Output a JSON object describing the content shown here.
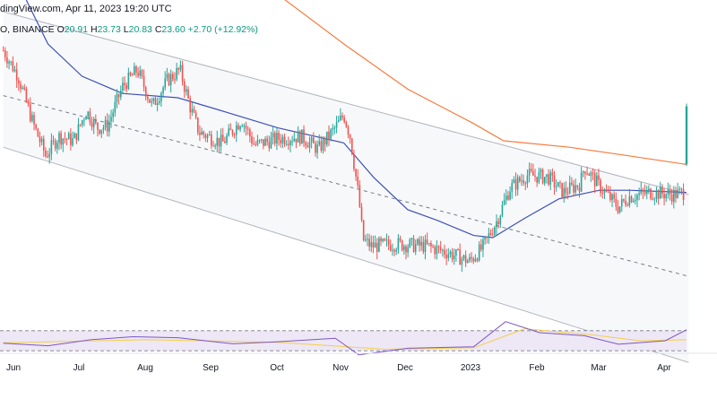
{
  "header": {
    "source_date": "dingView.com, Apr 11, 2023 19:20 UTC",
    "symbol": "O, BINANCE",
    "open_label": "O",
    "open": "20.91",
    "high_label": "H",
    "high": "23.73",
    "low_label": "L",
    "low": "20.83",
    "close_label": "C",
    "close": "23.60",
    "change": "+2.70 (+12.92%)"
  },
  "colors": {
    "up": "#26a69a",
    "down": "#ef5350",
    "ma_fast": "#3f51b5",
    "ma_slow": "#f57c3c",
    "channel_line": "#b2b5be",
    "channel_fill": "#f7f8fa",
    "rsi_line": "#7e57c2",
    "rsi_ma": "#f4cf4a"
  },
  "chart_data": [
    {
      "type": "candlestick",
      "title": "",
      "x_ticks": [
        "Jun",
        "Jul",
        "Aug",
        "Sep",
        "Oct",
        "Nov",
        "Dec",
        "2023",
        "Feb",
        "Mar",
        "Apr"
      ],
      "close_path": [
        {
          "d": "2022-05-25",
          "v": 26.2
        },
        {
          "d": "2022-06-01",
          "v": 25.0
        },
        {
          "d": "2022-06-08",
          "v": 22.8
        },
        {
          "d": "2022-06-14",
          "v": 21.3
        },
        {
          "d": "2022-06-20",
          "v": 22.2
        },
        {
          "d": "2022-06-27",
          "v": 22.0
        },
        {
          "d": "2022-07-03",
          "v": 23.4
        },
        {
          "d": "2022-07-08",
          "v": 22.6
        },
        {
          "d": "2022-07-13",
          "v": 22.7
        },
        {
          "d": "2022-07-20",
          "v": 24.5
        },
        {
          "d": "2022-07-27",
          "v": 25.3
        },
        {
          "d": "2022-08-03",
          "v": 23.6
        },
        {
          "d": "2022-08-10",
          "v": 24.8
        },
        {
          "d": "2022-08-16",
          "v": 25.3
        },
        {
          "d": "2022-08-21",
          "v": 23.5
        },
        {
          "d": "2022-08-25",
          "v": 22.4
        },
        {
          "d": "2022-09-05",
          "v": 21.9
        },
        {
          "d": "2022-09-14",
          "v": 23.0
        },
        {
          "d": "2022-09-20",
          "v": 21.8
        },
        {
          "d": "2022-10-01",
          "v": 22.1
        },
        {
          "d": "2022-10-12",
          "v": 22.2
        },
        {
          "d": "2022-10-20",
          "v": 21.6
        },
        {
          "d": "2022-10-28",
          "v": 22.6
        },
        {
          "d": "2022-11-01",
          "v": 23.2
        },
        {
          "d": "2022-11-04",
          "v": 22.2
        },
        {
          "d": "2022-11-08",
          "v": 19.4
        },
        {
          "d": "2022-11-10",
          "v": 17.4
        },
        {
          "d": "2022-11-14",
          "v": 17.1
        },
        {
          "d": "2022-11-25",
          "v": 17.2
        },
        {
          "d": "2022-12-10",
          "v": 17.1
        },
        {
          "d": "2022-12-20",
          "v": 16.8
        },
        {
          "d": "2022-12-30",
          "v": 16.4
        },
        {
          "d": "2023-01-05",
          "v": 17.0
        },
        {
          "d": "2023-01-12",
          "v": 18.3
        },
        {
          "d": "2023-01-18",
          "v": 19.8
        },
        {
          "d": "2023-01-26",
          "v": 20.4
        },
        {
          "d": "2023-02-05",
          "v": 20.3
        },
        {
          "d": "2023-02-12",
          "v": 19.6
        },
        {
          "d": "2023-02-20",
          "v": 20.0
        },
        {
          "d": "2023-02-22",
          "v": 20.8
        },
        {
          "d": "2023-03-01",
          "v": 19.9
        },
        {
          "d": "2023-03-10",
          "v": 18.9
        },
        {
          "d": "2023-03-15",
          "v": 19.4
        },
        {
          "d": "2023-03-25",
          "v": 19.6
        },
        {
          "d": "2023-04-05",
          "v": 19.5
        },
        {
          "d": "2023-04-10",
          "v": 19.6
        },
        {
          "d": "2023-04-11",
          "v": 23.6
        }
      ],
      "ma_fast": [
        {
          "d": "2022-05-25",
          "v": 32.0
        },
        {
          "d": "2022-06-05",
          "v": 28.5
        },
        {
          "d": "2022-06-15",
          "v": 26.5
        },
        {
          "d": "2022-07-01",
          "v": 25.0
        },
        {
          "d": "2022-07-20",
          "v": 24.2
        },
        {
          "d": "2022-08-15",
          "v": 24.0
        },
        {
          "d": "2022-09-01",
          "v": 23.5
        },
        {
          "d": "2022-10-01",
          "v": 22.6
        },
        {
          "d": "2022-11-01",
          "v": 21.9
        },
        {
          "d": "2022-11-15",
          "v": 20.3
        },
        {
          "d": "2022-12-01",
          "v": 18.8
        },
        {
          "d": "2022-12-15",
          "v": 18.3
        },
        {
          "d": "2023-01-01",
          "v": 17.6
        },
        {
          "d": "2023-01-10",
          "v": 17.5
        },
        {
          "d": "2023-01-25",
          "v": 18.4
        },
        {
          "d": "2023-02-10",
          "v": 19.3
        },
        {
          "d": "2023-03-01",
          "v": 19.7
        },
        {
          "d": "2023-03-15",
          "v": 19.7
        },
        {
          "d": "2023-04-11",
          "v": 19.6
        }
      ],
      "ma_slow": [
        {
          "d": "2022-08-10",
          "v": 32.5
        },
        {
          "d": "2022-09-01",
          "v": 30.8
        },
        {
          "d": "2022-10-01",
          "v": 28.8
        },
        {
          "d": "2022-11-01",
          "v": 26.5
        },
        {
          "d": "2022-12-01",
          "v": 24.4
        },
        {
          "d": "2023-01-01",
          "v": 22.8
        },
        {
          "d": "2023-01-15",
          "v": 22.0
        },
        {
          "d": "2023-02-15",
          "v": 21.7
        },
        {
          "d": "2023-03-15",
          "v": 21.3
        },
        {
          "d": "2023-04-11",
          "v": 20.9
        }
      ],
      "channel": {
        "upper": [
          {
            "d": "2022-05-25",
            "v": 28.0
          },
          {
            "d": "2023-04-12",
            "v": 19.5
          }
        ],
        "middle": [
          {
            "d": "2022-05-25",
            "v": 24.1
          },
          {
            "d": "2023-04-12",
            "v": 15.7
          }
        ],
        "lower": [
          {
            "d": "2022-05-25",
            "v": 21.7
          },
          {
            "d": "2023-04-12",
            "v": 11.7
          }
        ]
      },
      "last": {
        "open": 20.91,
        "high": 23.73,
        "low": 20.83,
        "close": 23.6
      }
    },
    {
      "type": "line",
      "title": "",
      "ylim": [
        0,
        100
      ],
      "bands": [
        70,
        30
      ],
      "rsi": [
        {
          "d": "2022-05-25",
          "v": 45
        },
        {
          "d": "2022-06-15",
          "v": 40
        },
        {
          "d": "2022-07-05",
          "v": 52
        },
        {
          "d": "2022-07-25",
          "v": 58
        },
        {
          "d": "2022-08-15",
          "v": 56
        },
        {
          "d": "2022-09-10",
          "v": 44
        },
        {
          "d": "2022-10-01",
          "v": 48
        },
        {
          "d": "2022-10-28",
          "v": 55
        },
        {
          "d": "2022-11-08",
          "v": 22
        },
        {
          "d": "2022-12-01",
          "v": 35
        },
        {
          "d": "2023-01-01",
          "v": 38
        },
        {
          "d": "2023-01-16",
          "v": 88
        },
        {
          "d": "2023-02-01",
          "v": 66
        },
        {
          "d": "2023-02-22",
          "v": 60
        },
        {
          "d": "2023-03-10",
          "v": 43
        },
        {
          "d": "2023-04-01",
          "v": 50
        },
        {
          "d": "2023-04-11",
          "v": 72
        }
      ],
      "rsi_ma": [
        {
          "d": "2022-05-25",
          "v": 46
        },
        {
          "d": "2022-08-01",
          "v": 52
        },
        {
          "d": "2022-10-01",
          "v": 47
        },
        {
          "d": "2022-11-20",
          "v": 33
        },
        {
          "d": "2023-01-01",
          "v": 36
        },
        {
          "d": "2023-01-25",
          "v": 74
        },
        {
          "d": "2023-02-25",
          "v": 62
        },
        {
          "d": "2023-03-20",
          "v": 50
        },
        {
          "d": "2023-04-11",
          "v": 52
        }
      ]
    }
  ]
}
